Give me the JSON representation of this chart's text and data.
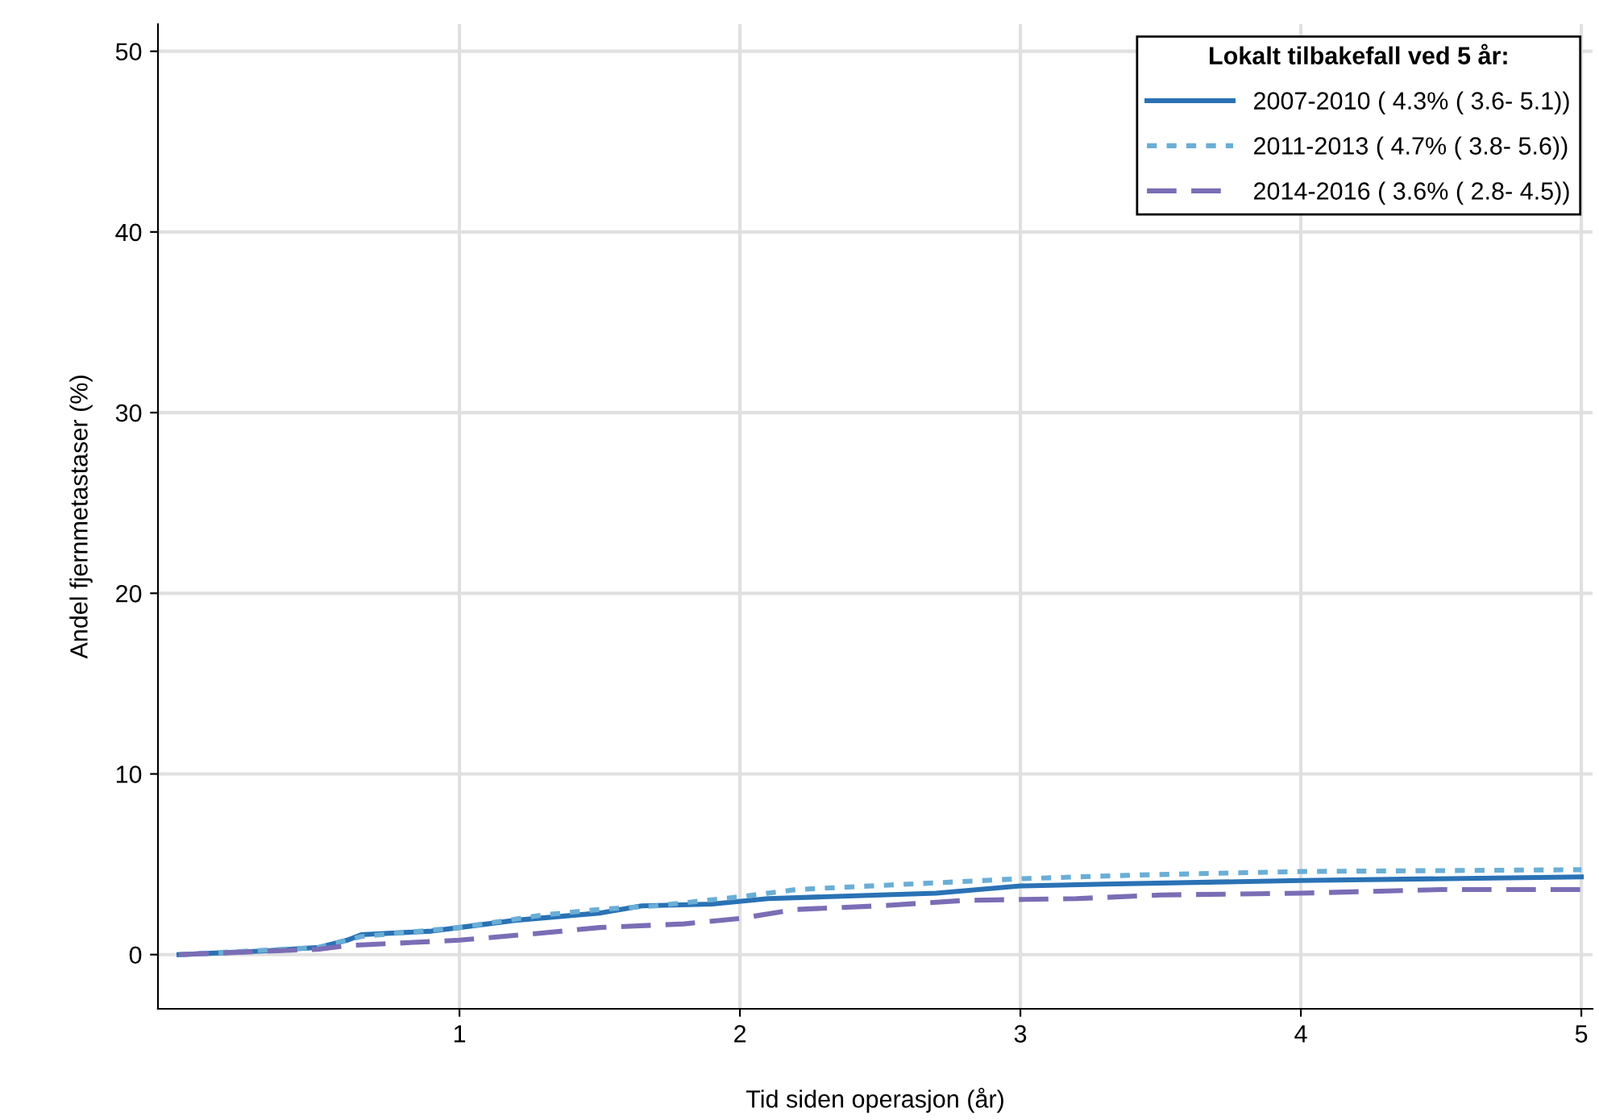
{
  "chart_data": {
    "type": "line",
    "xlabel": "Tid siden operasjon (år)",
    "ylabel": "Andel fjernmetastaser (%)",
    "legend_title": "Lokalt tilbakefall ved 5 år:",
    "xlim": [
      -0.075,
      5.04
    ],
    "ylim": [
      -3,
      51.5
    ],
    "xticks": [
      1,
      2,
      3,
      4,
      5
    ],
    "yticks": [
      0,
      10,
      20,
      30,
      40,
      50
    ],
    "grid": true,
    "legend": "top right",
    "series": [
      {
        "name": "2007-2010 ( 4.3% ( 3.6- 5.1))",
        "color": "#2a72b5",
        "line_style": "solid",
        "x": [
          0,
          0.3,
          0.5,
          0.6,
          0.65,
          0.9,
          1.0,
          1.2,
          1.5,
          1.65,
          1.9,
          2.1,
          2.3,
          2.7,
          3.0,
          3.3,
          4.0,
          5.0
        ],
        "values": [
          0,
          0.2,
          0.4,
          0.8,
          1.1,
          1.3,
          1.5,
          1.9,
          2.3,
          2.7,
          2.8,
          3.1,
          3.2,
          3.4,
          3.8,
          3.9,
          4.1,
          4.3
        ]
      },
      {
        "name": "2011-2013 ( 4.7% ( 3.8- 5.6))",
        "color": "#6aaed6",
        "line_style": "dotted",
        "x": [
          0,
          0.5,
          0.65,
          1.0,
          1.3,
          1.5,
          1.7,
          2.0,
          2.2,
          2.6,
          3.0,
          3.4,
          4.0,
          5.0
        ],
        "values": [
          0,
          0.4,
          1.0,
          1.5,
          2.2,
          2.5,
          2.7,
          3.2,
          3.6,
          3.9,
          4.2,
          4.4,
          4.6,
          4.7
        ]
      },
      {
        "name": "2014-2016 ( 3.6% ( 2.8- 4.5))",
        "color": "#7b6db5",
        "line_style": "dashed",
        "x": [
          0,
          0.5,
          0.6,
          1.0,
          1.3,
          1.5,
          1.8,
          2.0,
          2.2,
          2.5,
          2.8,
          3.2,
          3.5,
          4.0,
          4.5,
          5.0
        ],
        "values": [
          0,
          0.3,
          0.5,
          0.8,
          1.2,
          1.5,
          1.7,
          2.0,
          2.5,
          2.7,
          3.0,
          3.1,
          3.3,
          3.4,
          3.6,
          3.6
        ]
      }
    ]
  }
}
